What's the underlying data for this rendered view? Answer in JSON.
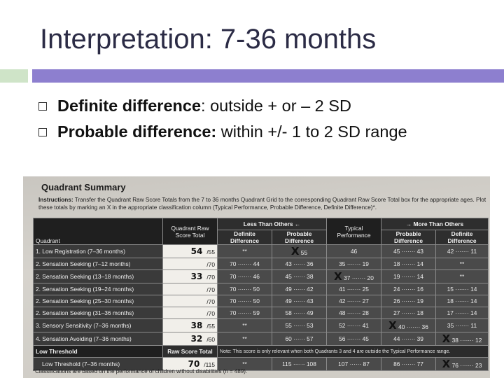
{
  "slide": {
    "title": "Interpretation: 7-36 months",
    "bullets": [
      {
        "bold": "Definite difference",
        "rest": ": outside + or – 2 SD"
      },
      {
        "bold": "Probable difference:",
        "rest": " within +/- 1 to 2 SD range"
      }
    ]
  },
  "photo": {
    "title": "Quadrant Summary",
    "instructions_label": "Instructions:",
    "instructions_text": "Transfer the Quadrant Raw Score Totals from the 7 to 36 months Quadrant Grid to the corresponding Quadrant Raw Score Total box for the appropriate ages. Plot these totals by marking an X in the appropriate classification column (Typical Performance, Probable Difference, Definite Difference)*.",
    "headers": {
      "quadrant": "Quadrant",
      "raw_score_total": "Quadrant Raw Score Total",
      "less_than_others": "Less Than Others ←",
      "more_than_others": "→ More Than Others",
      "definite_difference": "Definite Difference",
      "probable_difference": "Probable Difference",
      "typical_performance": "Typical Performance"
    },
    "rows": [
      {
        "label": "1. Low Registration (7–36 months)",
        "score": "54",
        "max": "/55",
        "c1": "**",
        "c2": "55",
        "c3": "46",
        "c4": "45 ······· 43",
        "c5": "42 ······· 11",
        "x": "X"
      },
      {
        "label": "2. Sensation Seeking (7–12 months)",
        "score": "",
        "max": "/70",
        "c1": "70 ······· 44",
        "c2": "43 ······ 36",
        "c3": "35 ······· 19",
        "c4": "18 ······· 14",
        "c5": "**",
        "x": ""
      },
      {
        "label": "2. Sensation Seeking (13–18 months)",
        "score": "33",
        "max": "/70",
        "c1": "70 ······· 46",
        "c2": "45 ······ 38",
        "c3": "37 ······· 20",
        "c4": "19 ······· 14",
        "c5": "**",
        "x": "X"
      },
      {
        "label": "2. Sensation Seeking (19–24 months)",
        "score": "",
        "max": "/70",
        "c1": "70 ······· 50",
        "c2": "49 ······ 42",
        "c3": "41 ······· 25",
        "c4": "24 ······· 16",
        "c5": "15 ······· 14",
        "x": ""
      },
      {
        "label": "2. Sensation Seeking (25–30 months)",
        "score": "",
        "max": "/70",
        "c1": "70 ······· 50",
        "c2": "49 ······ 43",
        "c3": "42 ······· 27",
        "c4": "26 ······· 19",
        "c5": "18 ······· 14",
        "x": ""
      },
      {
        "label": "2. Sensation Seeking (31–36 months)",
        "score": "",
        "max": "/70",
        "c1": "70 ······· 59",
        "c2": "58 ······ 49",
        "c3": "48 ······· 28",
        "c4": "27 ······· 18",
        "c5": "17 ······· 14",
        "x": ""
      },
      {
        "label": "3. Sensory Sensitivity (7–36 months)",
        "score": "38",
        "max": "/55",
        "c1": "**",
        "c2": "55 ······ 53",
        "c3": "52 ······· 41",
        "c4": "40 ······· 36",
        "c5": "35 ······· 11",
        "x": "X"
      },
      {
        "label": "4. Sensation Avoiding (7–36 months)",
        "score": "32",
        "max": "/60",
        "c1": "**",
        "c2": "60 ······ 57",
        "c3": "56 ······· 45",
        "c4": "44 ······· 39",
        "c5": "38 ······· 12",
        "x": "X"
      }
    ],
    "low_threshold": {
      "label": "Low Threshold",
      "raw_score_total": "Raw Score Total",
      "note": "Note: This score is only relevant when both Quadrants 3 and 4 are outside the Typical Performance range.",
      "row_label": "Low Threshold (7–36 months)",
      "score": "70",
      "max": "/115",
      "c1": "**",
      "c2": "115 ······ 108",
      "c3": "107 ······ 87",
      "c4": "86 ······· 77",
      "c5": "76 ······· 23",
      "x": "X"
    },
    "footer": "*Classifications are based on the performance of children without disabilities (n = 489)."
  },
  "colors": {
    "title": "#2b2b45",
    "accent_bar": "#8d7fcf",
    "green_bar": "#cfe4c8"
  }
}
